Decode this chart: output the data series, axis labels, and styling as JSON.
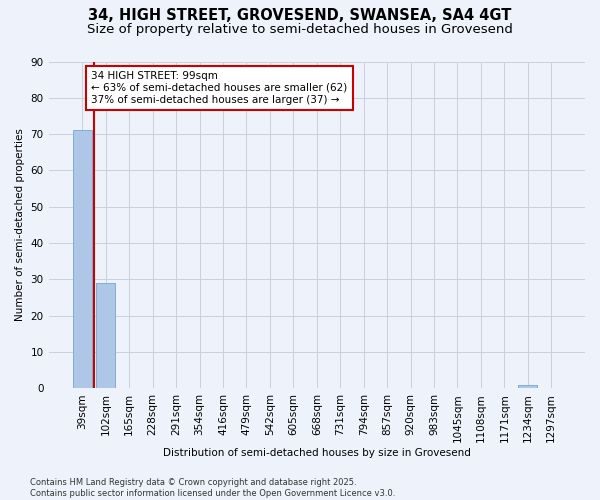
{
  "title_line1": "34, HIGH STREET, GROVESEND, SWANSEA, SA4 4GT",
  "title_line2": "Size of property relative to semi-detached houses in Grovesend",
  "categories": [
    "39sqm",
    "102sqm",
    "165sqm",
    "228sqm",
    "291sqm",
    "354sqm",
    "416sqm",
    "479sqm",
    "542sqm",
    "605sqm",
    "668sqm",
    "731sqm",
    "794sqm",
    "857sqm",
    "920sqm",
    "983sqm",
    "1045sqm",
    "1108sqm",
    "1171sqm",
    "1234sqm",
    "1297sqm"
  ],
  "values": [
    71,
    29,
    0,
    0,
    0,
    0,
    0,
    0,
    0,
    0,
    0,
    0,
    0,
    0,
    0,
    0,
    0,
    0,
    0,
    1,
    0
  ],
  "bar_color": "#aec6e8",
  "bar_edge_color": "#7bafd4",
  "ylabel": "Number of semi-detached properties",
  "xlabel": "Distribution of semi-detached houses by size in Grovesend",
  "ylim": [
    0,
    90
  ],
  "yticks": [
    0,
    10,
    20,
    30,
    40,
    50,
    60,
    70,
    80,
    90
  ],
  "annotation_title": "34 HIGH STREET: 99sqm",
  "annotation_line2": "← 63% of semi-detached houses are smaller (62)",
  "annotation_line3": "37% of semi-detached houses are larger (37) →",
  "annotation_box_color": "#ffffff",
  "annotation_box_edge": "#cc0000",
  "vline_color": "#cc0000",
  "footer_line1": "Contains HM Land Registry data © Crown copyright and database right 2025.",
  "footer_line2": "Contains public sector information licensed under the Open Government Licence v3.0.",
  "background_color": "#eef2fa",
  "grid_color": "#c8d0e0",
  "title_fontsize": 10.5,
  "subtitle_fontsize": 9.5,
  "axis_fontsize": 7.5,
  "tick_fontsize": 7.5
}
